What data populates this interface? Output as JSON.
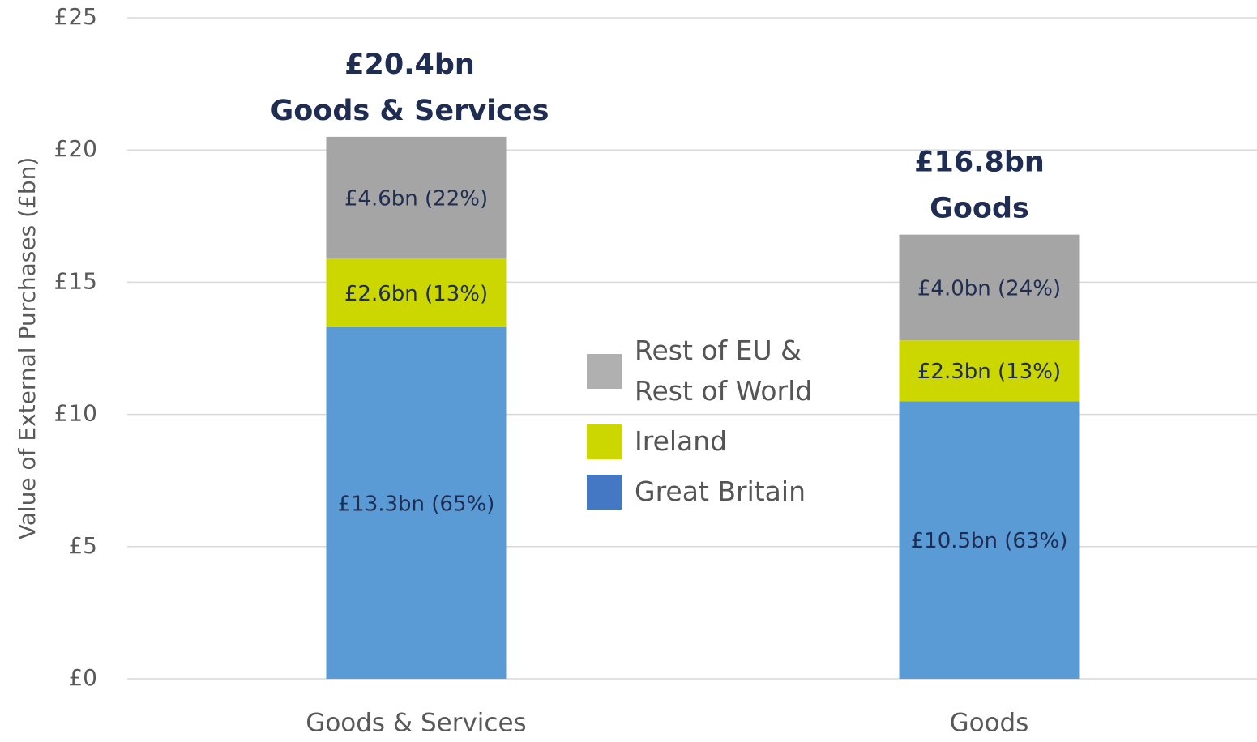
{
  "chart_data": {
    "type": "stacked-bar",
    "y_axis_label": "Value of External Purchases (£bn)",
    "categories": [
      "Goods & Services",
      "Goods"
    ],
    "series": [
      {
        "name": "Great Britain",
        "color": "#5b9bd5",
        "legend_color": "#4478c4",
        "values": [
          13.3,
          10.5
        ],
        "value_labels": [
          "£13.3bn (65%)",
          "£10.5bn (63%)"
        ]
      },
      {
        "name": "Ireland",
        "color": "#ccd600",
        "legend_color": "#ccd600",
        "values": [
          2.6,
          2.3
        ],
        "value_labels": [
          "£2.6bn (13%)",
          "£2.3bn (13%)"
        ]
      },
      {
        "name": "Rest of EU & Rest of World",
        "color": "#a5a5a5",
        "legend_color": "#b0b0b0",
        "values": [
          4.6,
          4.0
        ],
        "value_labels": [
          "£4.6bn (22%)",
          "£4.0bn (24%)"
        ]
      }
    ],
    "annotations": [
      [
        "£20.4bn",
        "Goods & Services"
      ],
      [
        "£16.8bn",
        "Goods"
      ]
    ],
    "ylim": [
      0,
      25
    ],
    "yticks": [
      {
        "value": 0,
        "label": "£0"
      },
      {
        "value": 5,
        "label": "£5"
      },
      {
        "value": 10,
        "label": "£10"
      },
      {
        "value": 15,
        "label": "£15"
      },
      {
        "value": 20,
        "label": "£20"
      },
      {
        "value": 25,
        "label": "£25"
      }
    ],
    "grid": true,
    "legend": "center"
  }
}
